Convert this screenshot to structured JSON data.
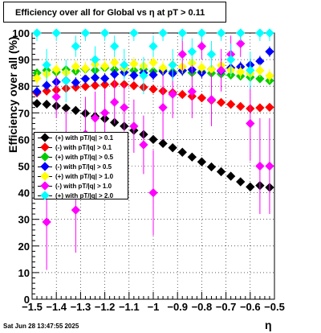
{
  "title": "Efficiency over all for Global vs   η at pT > 0.11",
  "timestamp": "Sat Jun 28 13:47:55 2025",
  "chart_data": {
    "type": "scatter",
    "xlabel": "η",
    "ylabel": "Efficiency over all (%)",
    "xlim": [
      -1.5,
      -0.5
    ],
    "ylim": [
      0,
      100
    ],
    "xticks": [
      "−1.5",
      "−1.4",
      "−1.3",
      "−1.2",
      "−1.1",
      "−1",
      "−0.9",
      "−0.8",
      "−0.7",
      "−0.6",
      "−0.5"
    ],
    "yticks": [
      "0",
      "10",
      "20",
      "30",
      "40",
      "50",
      "60",
      "70",
      "80",
      "90",
      "100"
    ],
    "grid": true,
    "legend_position": "left-middle",
    "series": [
      {
        "name": "(+) with pT/|q| > 0.1",
        "color": "#000000",
        "values": [
          [
            -1.48,
            73.5,
            0.8
          ],
          [
            -1.44,
            73.2,
            0.8
          ],
          [
            -1.4,
            72.6,
            0.8
          ],
          [
            -1.36,
            71.8,
            0.8
          ],
          [
            -1.32,
            70.9,
            0.8
          ],
          [
            -1.28,
            69.8,
            0.8
          ],
          [
            -1.24,
            68.7,
            0.8
          ],
          [
            -1.2,
            67.8,
            0.8
          ],
          [
            -1.16,
            66.4,
            0.8
          ],
          [
            -1.12,
            65.0,
            0.8
          ],
          [
            -1.08,
            63.4,
            0.8
          ],
          [
            -1.04,
            61.9,
            0.8
          ],
          [
            -1.0,
            60.0,
            0.8
          ],
          [
            -0.96,
            58.5,
            0.8
          ],
          [
            -0.92,
            56.9,
            0.8
          ],
          [
            -0.88,
            55.2,
            0.8
          ],
          [
            -0.84,
            53.4,
            0.8
          ],
          [
            -0.8,
            51.6,
            0.8
          ],
          [
            -0.76,
            49.7,
            0.8
          ],
          [
            -0.72,
            47.9,
            0.8
          ],
          [
            -0.68,
            46.2,
            0.8
          ],
          [
            -0.64,
            44.1,
            0.8
          ],
          [
            -0.6,
            42.2,
            0.8
          ],
          [
            -0.56,
            42.7,
            0.8
          ],
          [
            -0.52,
            42.0,
            0.8
          ]
        ]
      },
      {
        "name": "(-) with pT/|q| > 0.1",
        "color": "#ff0000",
        "values": [
          [
            -1.48,
            77.5,
            1.0
          ],
          [
            -1.44,
            78.2,
            1.0
          ],
          [
            -1.4,
            78.6,
            1.0
          ],
          [
            -1.36,
            79.2,
            1.0
          ],
          [
            -1.32,
            79.6,
            1.0
          ],
          [
            -1.28,
            79.9,
            1.0
          ],
          [
            -1.24,
            80.3,
            1.0
          ],
          [
            -1.2,
            80.6,
            1.0
          ],
          [
            -1.16,
            80.8,
            1.0
          ],
          [
            -1.12,
            80.7,
            1.0
          ],
          [
            -1.08,
            80.2,
            1.0
          ],
          [
            -1.04,
            79.6,
            1.0
          ],
          [
            -1.0,
            78.9,
            1.0
          ],
          [
            -0.96,
            78.2,
            1.0
          ],
          [
            -0.92,
            77.6,
            1.0
          ],
          [
            -0.88,
            76.9,
            1.0
          ],
          [
            -0.84,
            76.2,
            1.0
          ],
          [
            -0.8,
            75.6,
            1.0
          ],
          [
            -0.76,
            74.7,
            1.0
          ],
          [
            -0.72,
            73.9,
            1.0
          ],
          [
            -0.68,
            73.2,
            1.0
          ],
          [
            -0.64,
            72.4,
            1.0
          ],
          [
            -0.6,
            71.6,
            1.0
          ],
          [
            -0.56,
            71.9,
            1.0
          ],
          [
            -0.52,
            72.1,
            1.0
          ]
        ]
      },
      {
        "name": "(+) with pT/|q| > 0.5",
        "color": "#00cc00",
        "values": [
          [
            -1.48,
            85.0,
            1.5
          ],
          [
            -1.44,
            86.0,
            1.5
          ],
          [
            -1.4,
            85.3,
            1.5
          ],
          [
            -1.36,
            86.2,
            1.5
          ],
          [
            -1.32,
            85.7,
            1.5
          ],
          [
            -1.28,
            86.4,
            1.5
          ],
          [
            -1.24,
            86.0,
            1.5
          ],
          [
            -1.2,
            86.9,
            1.5
          ],
          [
            -1.16,
            86.2,
            1.5
          ],
          [
            -1.12,
            86.6,
            1.5
          ],
          [
            -1.08,
            85.9,
            1.5
          ],
          [
            -1.04,
            86.3,
            1.5
          ],
          [
            -1.0,
            85.6,
            1.5
          ],
          [
            -0.96,
            86.1,
            1.5
          ],
          [
            -0.92,
            85.4,
            1.5
          ],
          [
            -0.88,
            85.8,
            1.5
          ],
          [
            -0.84,
            85.1,
            1.5
          ],
          [
            -0.8,
            85.5,
            1.5
          ],
          [
            -0.76,
            84.9,
            1.5
          ],
          [
            -0.72,
            84.6,
            1.5
          ],
          [
            -0.68,
            84.2,
            1.5
          ],
          [
            -0.64,
            83.8,
            1.5
          ],
          [
            -0.6,
            83.4,
            1.5
          ],
          [
            -0.56,
            82.8,
            1.5
          ],
          [
            -0.52,
            82.1,
            1.5
          ]
        ]
      },
      {
        "name": "(-) with pT/|q| > 0.5",
        "color": "#0000ff",
        "values": [
          [
            -1.48,
            78.0,
            2.0
          ],
          [
            -1.44,
            80.3,
            2.0
          ],
          [
            -1.4,
            81.6,
            2.0
          ],
          [
            -1.36,
            82.1,
            2.0
          ],
          [
            -1.32,
            81.4,
            2.0
          ],
          [
            -1.28,
            82.8,
            2.0
          ],
          [
            -1.24,
            83.2,
            2.0
          ],
          [
            -1.2,
            82.9,
            2.0
          ],
          [
            -1.16,
            84.5,
            2.0
          ],
          [
            -1.12,
            85.2,
            2.0
          ],
          [
            -1.08,
            84.1,
            2.0
          ],
          [
            -1.04,
            85.0,
            2.0
          ],
          [
            -1.0,
            84.3,
            2.0
          ],
          [
            -0.96,
            85.6,
            2.0
          ],
          [
            -0.92,
            84.8,
            2.0
          ],
          [
            -0.88,
            85.9,
            2.0
          ],
          [
            -0.84,
            86.2,
            2.0
          ],
          [
            -0.8,
            85.1,
            2.0
          ],
          [
            -0.76,
            86.4,
            2.0
          ],
          [
            -0.72,
            85.7,
            2.0
          ],
          [
            -0.68,
            86.9,
            2.0
          ],
          [
            -0.64,
            87.3,
            2.0
          ],
          [
            -0.6,
            88.0,
            2.0
          ],
          [
            -0.56,
            89.4,
            2.0
          ],
          [
            -0.52,
            93.0,
            2.0
          ]
        ]
      },
      {
        "name": "(+) with pT/|q| > 1.0",
        "color": "#ffff00",
        "values": [
          [
            -1.48,
            83.0,
            2.5
          ],
          [
            -1.44,
            84.6,
            2.5
          ],
          [
            -1.4,
            86.3,
            2.5
          ],
          [
            -1.36,
            85.1,
            2.5
          ],
          [
            -1.32,
            87.4,
            2.5
          ],
          [
            -1.28,
            86.7,
            2.5
          ],
          [
            -1.24,
            88.2,
            2.5
          ],
          [
            -1.2,
            87.5,
            2.5
          ],
          [
            -1.16,
            88.9,
            2.5
          ],
          [
            -1.12,
            86.8,
            2.5
          ],
          [
            -1.08,
            88.4,
            2.5
          ],
          [
            -1.04,
            87.6,
            2.5
          ],
          [
            -1.0,
            88.9,
            2.5
          ],
          [
            -0.96,
            86.9,
            2.5
          ],
          [
            -0.92,
            88.1,
            2.5
          ],
          [
            -0.88,
            87.3,
            2.5
          ],
          [
            -0.84,
            88.7,
            2.5
          ],
          [
            -0.8,
            87.0,
            2.5
          ],
          [
            -0.76,
            86.4,
            2.5
          ],
          [
            -0.72,
            87.8,
            2.5
          ],
          [
            -0.68,
            86.1,
            2.5
          ],
          [
            -0.64,
            85.4,
            2.5
          ],
          [
            -0.6,
            84.7,
            2.5
          ],
          [
            -0.56,
            85.9,
            2.5
          ],
          [
            -0.52,
            83.9,
            2.5
          ]
        ]
      },
      {
        "name": "(-) with pT/|q| > 1.0",
        "color": "#ff00ff",
        "values": [
          [
            -1.44,
            29.0,
            18.0
          ],
          [
            -1.4,
            76.0,
            8.0
          ],
          [
            -1.36,
            56.0,
            15.0
          ],
          [
            -1.32,
            33.5,
            16.0
          ],
          [
            -1.28,
            62.0,
            14.0
          ],
          [
            -1.24,
            68.0,
            10.0
          ],
          [
            -1.2,
            70.0,
            9.0
          ],
          [
            -1.16,
            74.0,
            8.0
          ],
          [
            -1.12,
            72.0,
            9.0
          ],
          [
            -1.08,
            65.0,
            10.0
          ],
          [
            -1.04,
            58.0,
            11.0
          ],
          [
            -1.0,
            40.0,
            16.0
          ],
          [
            -0.96,
            72.0,
            12.0
          ],
          [
            -0.92,
            77.0,
            9.0
          ],
          [
            -0.88,
            92.0,
            6.0
          ],
          [
            -0.84,
            78.0,
            10.0
          ],
          [
            -0.8,
            95.0,
            5.0
          ],
          [
            -0.76,
            75.0,
            10.0
          ],
          [
            -0.72,
            86.0,
            8.0
          ],
          [
            -0.68,
            92.0,
            7.0
          ],
          [
            -0.64,
            96.0,
            5.0
          ],
          [
            -0.6,
            66.0,
            14.0
          ],
          [
            -0.56,
            50.0,
            18.0
          ],
          [
            -0.52,
            50.0,
            18.0
          ]
        ]
      },
      {
        "name": "(+) with pT/|q| > 2.0",
        "color": "#00ffff",
        "values": [
          [
            -1.48,
            100.0,
            3.0
          ],
          [
            -1.44,
            88.0,
            6.0
          ],
          [
            -1.4,
            100.0,
            3.0
          ],
          [
            -1.36,
            82.0,
            8.0
          ],
          [
            -1.32,
            95.0,
            4.0
          ],
          [
            -1.28,
            100.0,
            3.0
          ],
          [
            -1.24,
            90.0,
            5.0
          ],
          [
            -1.2,
            100.0,
            3.0
          ],
          [
            -1.16,
            95.0,
            4.0
          ],
          [
            -1.12,
            88.0,
            6.0
          ],
          [
            -1.08,
            100.0,
            3.0
          ],
          [
            -1.04,
            84.0,
            7.0
          ],
          [
            -1.0,
            95.0,
            4.0
          ],
          [
            -0.96,
            100.0,
            3.0
          ],
          [
            -0.92,
            88.0,
            6.0
          ],
          [
            -0.88,
            100.0,
            3.0
          ],
          [
            -0.84,
            93.0,
            5.0
          ],
          [
            -0.8,
            100.0,
            3.0
          ],
          [
            -0.76,
            92.0,
            5.0
          ],
          [
            -0.72,
            100.0,
            3.0
          ],
          [
            -0.68,
            90.0,
            6.0
          ],
          [
            -0.64,
            100.0,
            3.0
          ],
          [
            -0.6,
            86.0,
            7.0
          ],
          [
            -0.56,
            100.0,
            3.0
          ],
          [
            -0.52,
            100.0,
            3.0
          ]
        ]
      }
    ]
  }
}
